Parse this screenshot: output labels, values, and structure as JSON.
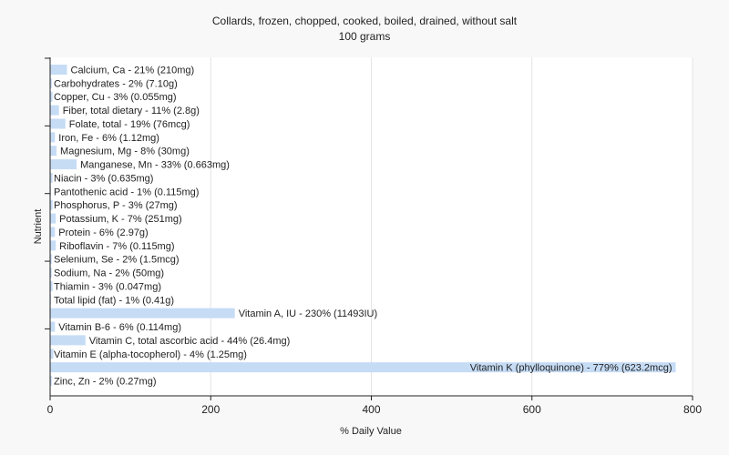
{
  "chart_data": {
    "type": "bar",
    "orientation": "horizontal",
    "title": "Collards, frozen, chopped, cooked, boiled, drained, without salt",
    "subtitle": "100 grams",
    "xlabel": "% Daily Value",
    "ylabel": "Nutrient",
    "xlim": [
      0,
      800
    ],
    "xticks": [
      "0",
      "200",
      "400",
      "600",
      "800"
    ],
    "grid": "vertical",
    "bar_color": "#c6dcf5",
    "categories": [
      "Calcium, Ca - 21% (210mg)",
      "Carbohydrates - 2% (7.10g)",
      "Copper, Cu - 3% (0.055mg)",
      "Fiber, total dietary - 11% (2.8g)",
      "Folate, total - 19% (76mcg)",
      "Iron, Fe - 6% (1.12mg)",
      "Magnesium, Mg - 8% (30mg)",
      "Manganese, Mn - 33% (0.663mg)",
      "Niacin - 3% (0.635mg)",
      "Pantothenic acid - 1% (0.115mg)",
      "Phosphorus, P - 3% (27mg)",
      "Potassium, K - 7% (251mg)",
      "Protein - 6% (2.97g)",
      "Riboflavin - 7% (0.115mg)",
      "Selenium, Se - 2% (1.5mcg)",
      "Sodium, Na - 2% (50mg)",
      "Thiamin - 3% (0.047mg)",
      "Total lipid (fat) - 1% (0.41g)",
      "Vitamin A, IU - 230% (11493IU)",
      "Vitamin B-6 - 6% (0.114mg)",
      "Vitamin C, total ascorbic acid - 44% (26.4mg)",
      "Vitamin E (alpha-tocopherol) - 4% (1.25mg)",
      "Vitamin K (phylloquinone) - 779% (623.2mcg)",
      "Zinc, Zn - 2% (0.27mg)"
    ],
    "values": [
      21,
      2,
      3,
      11,
      19,
      6,
      8,
      33,
      3,
      1,
      3,
      7,
      6,
      7,
      2,
      2,
      3,
      1,
      230,
      6,
      44,
      4,
      779,
      2
    ]
  }
}
